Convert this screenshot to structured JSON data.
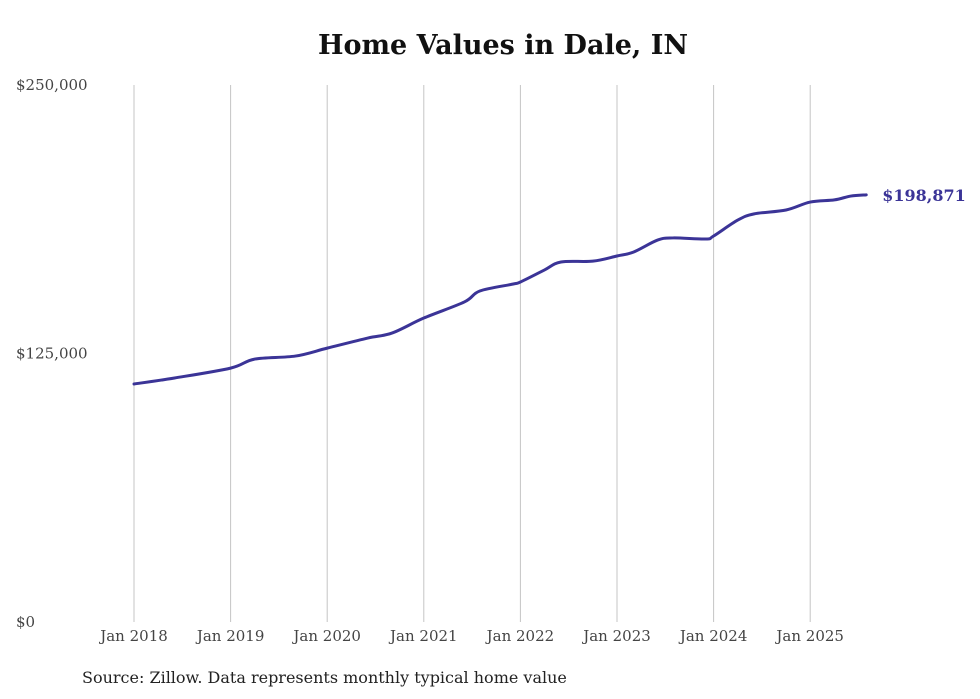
{
  "chart_data": {
    "type": "line",
    "title": "Home Values in Dale, IN",
    "xlabel": "",
    "ylabel": "",
    "ylim": [
      0,
      250000
    ],
    "y_ticks": [
      0,
      125000,
      250000
    ],
    "y_tick_labels": [
      "$0",
      "$125,000",
      "$250,000"
    ],
    "x_ticks": [
      2018,
      2019,
      2020,
      2021,
      2022,
      2023,
      2024,
      2025
    ],
    "x_tick_labels": [
      "Jan 2018",
      "Jan 2019",
      "Jan 2020",
      "Jan 2021",
      "Jan 2022",
      "Jan 2023",
      "Jan 2024",
      "Jan 2025"
    ],
    "grid": "vertical",
    "series": [
      {
        "name": "Typical home value",
        "color": "#3b3497",
        "x": [
          2018.0,
          2018.42,
          2019.0,
          2019.25,
          2019.67,
          2020.0,
          2020.42,
          2020.67,
          2021.0,
          2021.42,
          2021.58,
          2021.92,
          2022.0,
          2022.25,
          2022.42,
          2022.75,
          2023.0,
          2023.17,
          2023.42,
          2023.58,
          2023.92,
          2024.0,
          2024.25,
          2024.42,
          2024.75,
          2025.0,
          2025.25,
          2025.42,
          2025.58
        ],
        "values": [
          110800,
          113600,
          118200,
          122400,
          123800,
          127500,
          132200,
          134500,
          141500,
          149000,
          154100,
          157300,
          158300,
          163900,
          167600,
          168000,
          170400,
          172200,
          177800,
          178800,
          178300,
          179700,
          187100,
          190000,
          191800,
          195500,
          196500,
          198300,
          198871
        ]
      }
    ],
    "end_label": "$198,871"
  },
  "source": "Source: Zillow. Data represents monthly typical home value"
}
